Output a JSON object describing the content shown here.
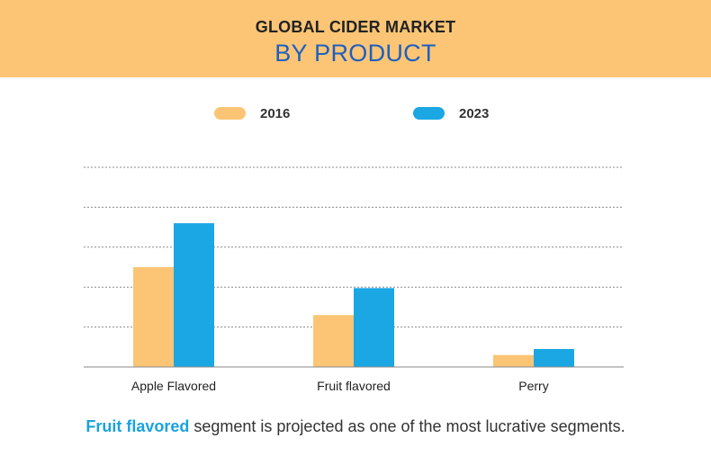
{
  "header": {
    "title_line1": "GLOBAL CIDER MARKET",
    "title_line2": "BY PRODUCT"
  },
  "colors": {
    "header_bg": "#fbc575",
    "series_2016": "#fbc575",
    "series_2023": "#1aa7e4",
    "title_blue": "#1d5fc2",
    "highlight": "#1aa3dd"
  },
  "chart_data": {
    "type": "bar",
    "categories": [
      "Apple Flavored",
      "Fruit flavored",
      "Perry"
    ],
    "series": [
      {
        "name": "2016",
        "values": [
          100,
          52,
          12
        ]
      },
      {
        "name": "2023",
        "values": [
          144,
          79,
          18
        ]
      }
    ],
    "ylim": [
      0,
      200
    ],
    "grid": true,
    "legend_position": "top"
  },
  "caption": {
    "highlight": "Fruit flavored",
    "rest": " segment is projected as one of the most lucrative segments."
  }
}
